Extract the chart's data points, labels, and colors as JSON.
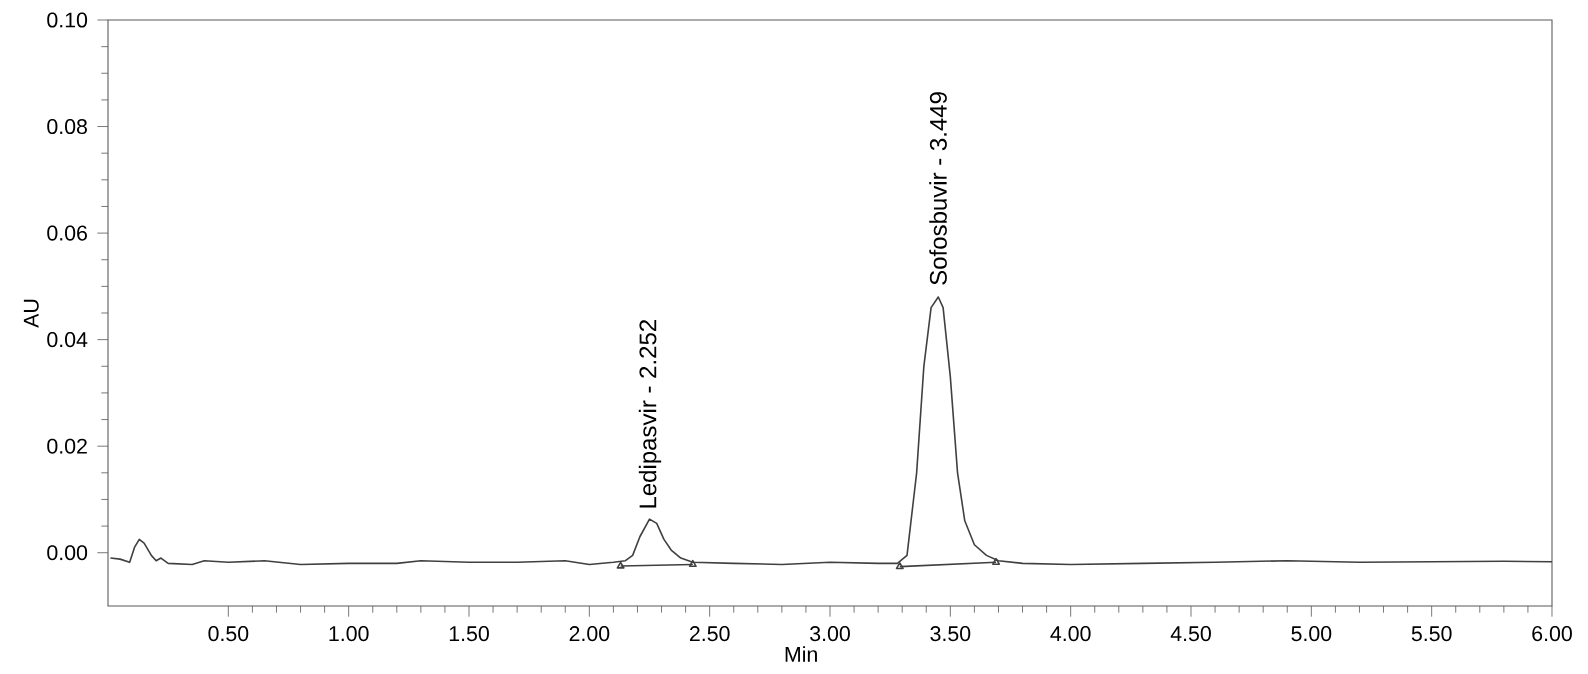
{
  "chart_data": {
    "type": "line",
    "xlabel": "Min",
    "ylabel": "AU",
    "xlim": [
      0,
      6
    ],
    "ylim": [
      -0.01,
      0.1
    ],
    "xticks": [
      {
        "value": 0.5,
        "label": "0.50"
      },
      {
        "value": 1,
        "label": "1.00"
      },
      {
        "value": 1.5,
        "label": "1.50"
      },
      {
        "value": 2,
        "label": "2.00"
      },
      {
        "value": 2.5,
        "label": "2.50"
      },
      {
        "value": 3,
        "label": "3.00"
      },
      {
        "value": 3.5,
        "label": "3.50"
      },
      {
        "value": 4,
        "label": "4.00"
      },
      {
        "value": 4.5,
        "label": "4.50"
      },
      {
        "value": 5,
        "label": "5.00"
      },
      {
        "value": 5.5,
        "label": "5.50"
      },
      {
        "value": 6,
        "label": "6.00"
      }
    ],
    "yticks": [
      {
        "value": 0,
        "label": "0.00"
      },
      {
        "value": 0.02,
        "label": "0.02"
      },
      {
        "value": 0.04,
        "label": "0.04"
      },
      {
        "value": 0.06,
        "label": "0.06"
      },
      {
        "value": 0.08,
        "label": "0.08"
      },
      {
        "value": 0.1,
        "label": "0.10"
      }
    ],
    "grid": false,
    "series": [
      {
        "color": "#404040",
        "x": [
          0.01,
          0.05,
          0.09,
          0.11,
          0.13,
          0.15,
          0.18,
          0.2,
          0.22,
          0.25,
          0.35,
          0.4,
          0.5,
          0.65,
          0.8,
          1.0,
          1.2,
          1.3,
          1.5,
          1.7,
          1.9,
          2.0,
          2.1,
          2.15,
          2.18,
          2.21,
          2.25,
          2.28,
          2.31,
          2.34,
          2.38,
          2.43,
          2.6,
          2.8,
          3.0,
          3.2,
          3.28,
          3.32,
          3.36,
          3.39,
          3.42,
          3.45,
          3.47,
          3.5,
          3.53,
          3.56,
          3.6,
          3.65,
          3.7,
          3.8,
          4.0,
          4.3,
          4.6,
          4.9,
          5.2,
          5.5,
          5.8,
          6.0
        ],
        "values": [
          -0.001,
          -0.0012,
          -0.0018,
          0.001,
          0.0025,
          0.0018,
          -0.0005,
          -0.0015,
          -0.001,
          -0.002,
          -0.0022,
          -0.0015,
          -0.0018,
          -0.0015,
          -0.0022,
          -0.002,
          -0.002,
          -0.0015,
          -0.0018,
          -0.0018,
          -0.0015,
          -0.0022,
          -0.0018,
          -0.0015,
          -0.0005,
          0.003,
          0.0063,
          0.0055,
          0.0025,
          0.0005,
          -0.001,
          -0.0018,
          -0.002,
          -0.0022,
          -0.0018,
          -0.002,
          -0.002,
          -0.0005,
          0.015,
          0.035,
          0.046,
          0.048,
          0.046,
          0.033,
          0.015,
          0.006,
          0.0015,
          -0.0005,
          -0.0015,
          -0.002,
          -0.0022,
          -0.002,
          -0.0018,
          -0.0015,
          -0.0018,
          -0.0017,
          -0.0016,
          -0.0017
        ]
      },
      {
        "color": "#404040",
        "marker": "triangle",
        "x": [
          2.13,
          2.43
        ],
        "values": [
          -0.0025,
          -0.0022
        ]
      },
      {
        "color": "#404040",
        "marker": "triangle",
        "x": [
          3.29,
          3.69
        ],
        "values": [
          -0.0026,
          -0.0018
        ]
      }
    ],
    "annotations": [
      {
        "text": "Ledipasvir - 2.252",
        "x": 2.252,
        "y": 0.0075
      },
      {
        "text": "Sofosbuvir - 3.449",
        "x": 3.449,
        "y": 0.0495
      }
    ]
  }
}
